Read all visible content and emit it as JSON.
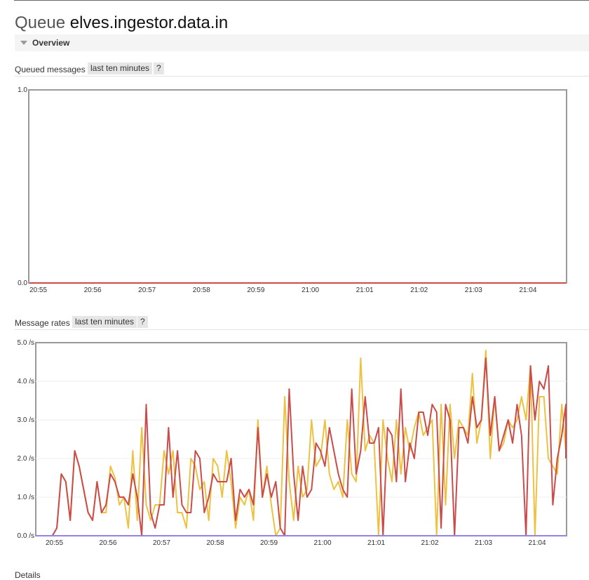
{
  "page": {
    "title_prefix": "Queue",
    "queue_name": "elves.ingestor.data.in"
  },
  "overview": {
    "label": "Overview"
  },
  "queued_chart": {
    "title": "Queued messages",
    "range_label": "last ten minutes",
    "help_label": "?"
  },
  "rates_chart": {
    "title": "Message rates",
    "range_label": "last ten minutes",
    "help_label": "?"
  },
  "details": {
    "label": "Details"
  },
  "colors": {
    "publish": "#edc240",
    "deliver": "#cb4b4b",
    "baseline": "#9183e7",
    "queued": "#cb4b4b"
  },
  "chart_data": [
    {
      "type": "line",
      "title": "",
      "x_ticks": [
        "20:55",
        "20:56",
        "20:57",
        "20:58",
        "20:59",
        "21:00",
        "21:01",
        "21:02",
        "21:03",
        "21:04"
      ],
      "y_ticks": [
        "0.0",
        "1.0"
      ],
      "ylim": [
        0,
        1
      ],
      "series": [
        {
          "values": [
            0,
            0
          ]
        }
      ]
    },
    {
      "type": "line",
      "title": "",
      "x_ticks": [
        "20:55",
        "20:56",
        "20:57",
        "20:58",
        "20:59",
        "21:00",
        "21:01",
        "21:02",
        "21:03",
        "21:04"
      ],
      "y_ticks": [
        "0.0 /s",
        "1.0 /s",
        "2.0 /s",
        "3.0 /s",
        "4.0 /s",
        "5.0 /s"
      ],
      "ylim": [
        0,
        5
      ],
      "x_start_minutes": -0.12,
      "x_step_minutes": 0.0833,
      "series": [
        {
          "values": [
            0,
            0,
            0.2,
            1.6,
            1.4,
            0.4,
            2.2,
            1.8,
            1.2,
            0.6,
            0.4,
            1.4,
            0.6,
            0.6,
            1.8,
            1.5,
            0.8,
            1.0,
            0.2,
            2.2,
            0.4,
            2.8,
            0.8,
            0.4,
            0.8,
            0.8,
            2.2,
            1.6,
            2.2,
            0.6,
            0.6,
            0.2,
            2.0,
            1.8,
            1.2,
            1.4,
            0.4,
            2.0,
            1.8,
            1.0,
            2.2,
            1.4,
            0.2,
            1.0,
            0.8,
            1.2,
            0.4,
            3.0,
            1.0,
            1.8,
            0.8,
            0,
            0.2,
            3.6,
            1.4,
            0.4,
            1.8,
            1.0,
            1.2,
            3.0,
            1.8,
            2.0,
            3.0,
            1.6,
            1.2,
            1.4,
            1.0,
            3.0,
            1.6,
            1.4,
            4.6,
            2.2,
            2.6,
            2.4,
            0,
            3.0,
            2.0,
            1.4,
            3.0,
            1.6,
            2.8,
            2.2,
            2.8,
            3.2,
            2.6,
            2.8,
            3.0,
            0,
            3.4,
            0.8,
            3.4,
            2.0,
            3.0,
            2.8,
            2.6,
            4.2,
            2.4,
            3.0,
            4.8,
            2.0,
            3.6,
            2.2,
            2.4,
            3.0,
            2.8,
            3.0,
            3.6,
            3.0,
            4.4,
            0,
            3.6,
            3.6,
            2.0,
            1.8,
            1.6,
            3.4,
            2.2
          ]
        },
        {
          "values": [
            0,
            0,
            0.2,
            1.6,
            1.4,
            0.4,
            2.2,
            1.8,
            1.2,
            0.6,
            0.4,
            1.4,
            0.6,
            0.8,
            1.6,
            1.4,
            1.0,
            1.0,
            0.8,
            1.6,
            1.0,
            0,
            3.4,
            0.6,
            0.2,
            0.8,
            0.8,
            2.8,
            1.0,
            2.2,
            0.8,
            0.6,
            0.6,
            2.2,
            2.0,
            0.6,
            1.0,
            1.6,
            1.4,
            1.4,
            1.4,
            2.0,
            0.4,
            1.2,
            1.0,
            1.2,
            0.8,
            2.8,
            1.0,
            1.6,
            1.0,
            1.4,
            0.2,
            0,
            3.8,
            1.6,
            0.4,
            1.8,
            1.0,
            1.2,
            2.4,
            2.2,
            1.8,
            2.8,
            2.2,
            1.6,
            1.2,
            1.0,
            3.8,
            1.6,
            2.2,
            3.6,
            2.4,
            2.4,
            2.8,
            0,
            2.8,
            2.6,
            1.4,
            3.8,
            1.4,
            2.4,
            2.0,
            3.2,
            3.2,
            2.6,
            3.4,
            3.2,
            0.2,
            3.4,
            3.0,
            0,
            2.8,
            2.8,
            2.4,
            3.6,
            2.8,
            3.0,
            4.6,
            2.6,
            3.6,
            2.2,
            2.6,
            3.0,
            2.4,
            3.4,
            2.6,
            0,
            4.4,
            3.0,
            4.0,
            3.8,
            4.4,
            0.8,
            2.0,
            2.6,
            3.4,
            2.0
          ]
        },
        {
          "values": [
            0,
            0
          ]
        }
      ]
    }
  ]
}
